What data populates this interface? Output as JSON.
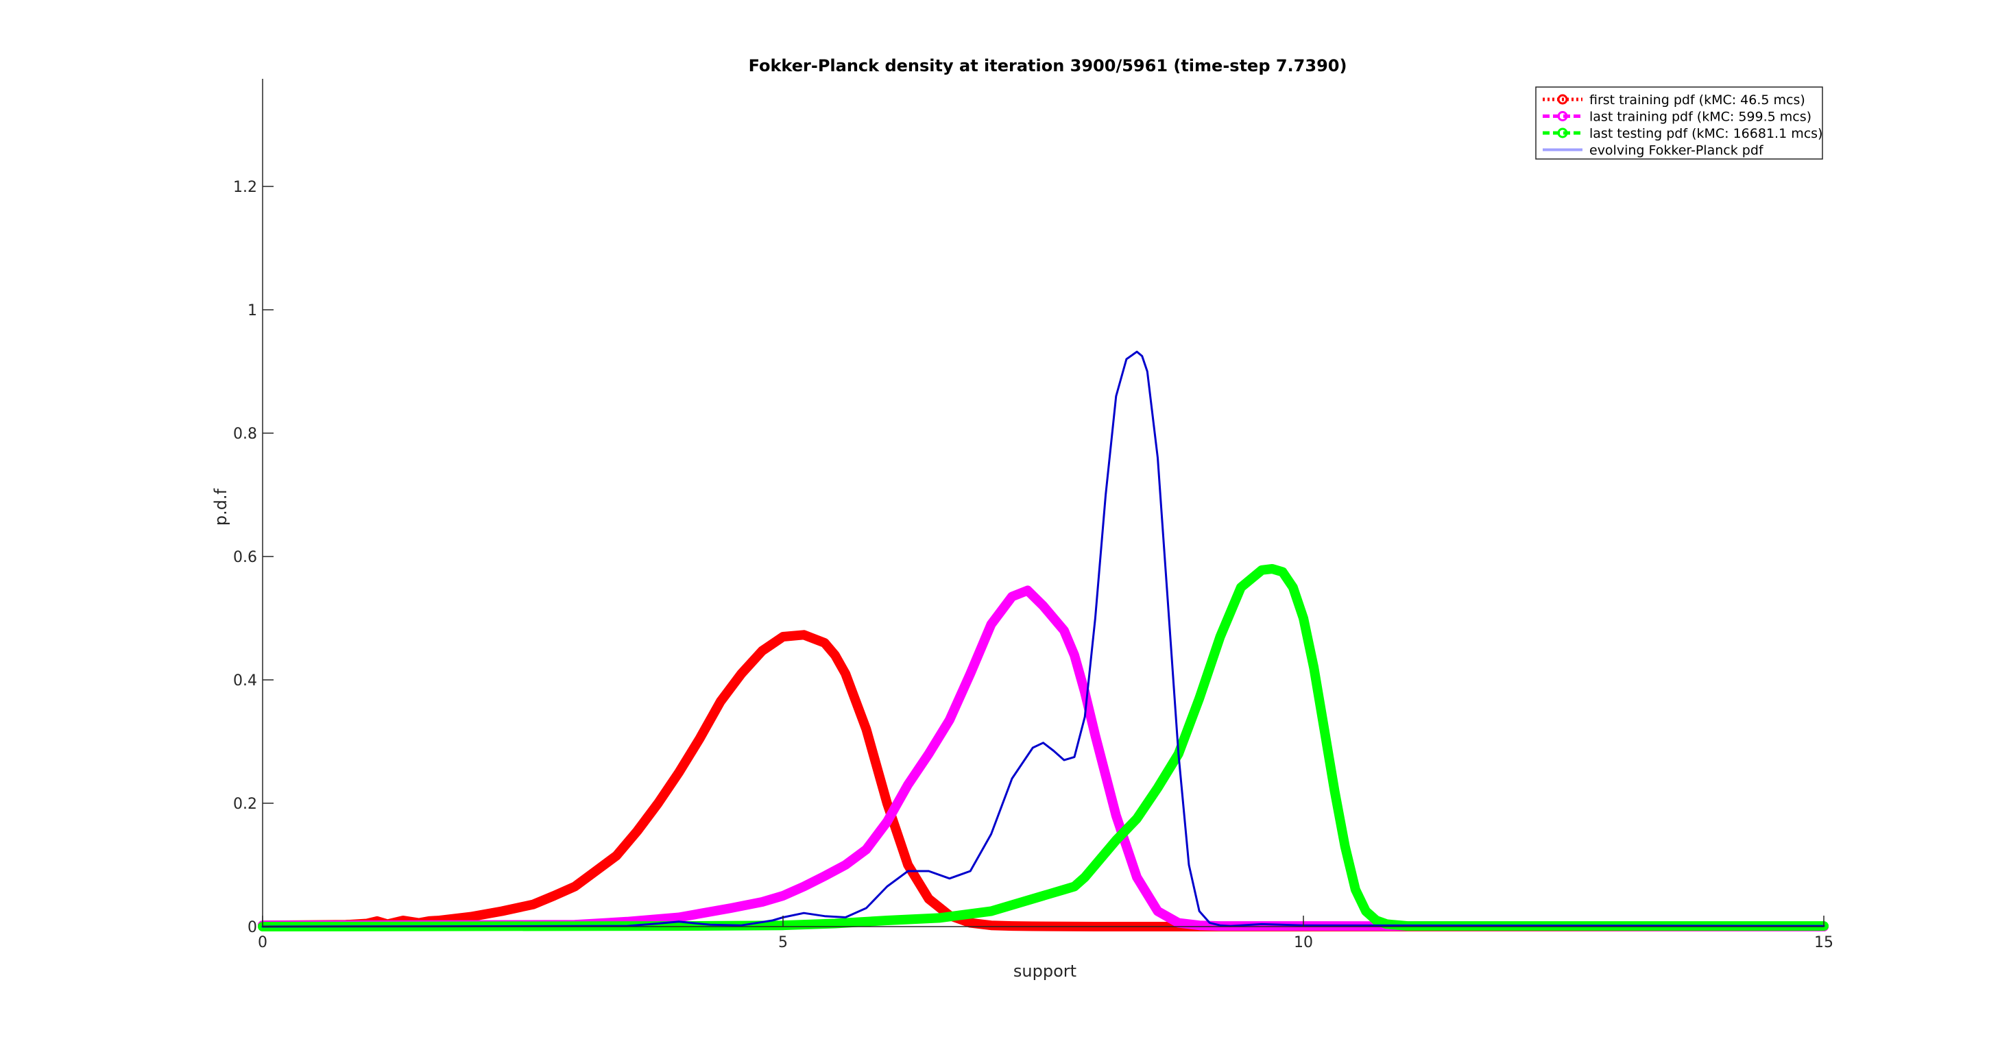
{
  "chart_data": {
    "type": "line",
    "title": "Fokker-Planck density at iteration 3900/5961 (time-step 7.7390)",
    "xlabel": "support",
    "ylabel": "p.d.f",
    "xlim": [
      0,
      15
    ],
    "ylim": [
      0,
      1.38
    ],
    "xticks": [
      0,
      5,
      10,
      15
    ],
    "xtick_labels": [
      "0",
      "5",
      "10",
      "15"
    ],
    "yticks": [
      0,
      0.2,
      0.4,
      0.6,
      0.8,
      1,
      1.2
    ],
    "ytick_labels": [
      "0",
      "0.2",
      "0.4",
      "0.6",
      "0.8",
      "1",
      "1.2"
    ],
    "grid": false,
    "legend_position": "top-right",
    "colors": {
      "first": "#ff0000",
      "last_training": "#ff00ff",
      "last_testing": "#00ff00",
      "evolving": "#0000cc",
      "evolving_legend": "#a0a0ff",
      "axis": "#262626"
    },
    "series": [
      {
        "name": "first training pdf (kMC: 46.5 mcs)",
        "style": "dotted-circle",
        "x": [
          0,
          0.8,
          1.0,
          1.1,
          1.2,
          1.35,
          1.5,
          1.6,
          1.7,
          2.0,
          2.3,
          2.6,
          2.8,
          3.0,
          3.2,
          3.4,
          3.6,
          3.8,
          4.0,
          4.2,
          4.4,
          4.6,
          4.8,
          5.0,
          5.2,
          5.4,
          5.5,
          5.6,
          5.8,
          6.0,
          6.2,
          6.4,
          6.6,
          6.8,
          7.0,
          7.2,
          7.4,
          8.0,
          9.0,
          10.0,
          15.0
        ],
        "y": [
          0.002,
          0.003,
          0.005,
          0.009,
          0.004,
          0.01,
          0.006,
          0.009,
          0.01,
          0.016,
          0.025,
          0.036,
          0.05,
          0.065,
          0.09,
          0.115,
          0.155,
          0.2,
          0.25,
          0.305,
          0.365,
          0.41,
          0.447,
          0.47,
          0.473,
          0.46,
          0.44,
          0.41,
          0.32,
          0.2,
          0.1,
          0.045,
          0.018,
          0.006,
          0.002,
          0.001,
          0.0005,
          0,
          0,
          0,
          0
        ]
      },
      {
        "name": "last training pdf (kMC: 599.5 mcs)",
        "style": "dashed-circle",
        "x": [
          0,
          3.0,
          3.5,
          4.0,
          4.5,
          4.8,
          5.0,
          5.2,
          5.4,
          5.6,
          5.8,
          6.0,
          6.2,
          6.4,
          6.6,
          6.8,
          7.0,
          7.2,
          7.35,
          7.5,
          7.6,
          7.7,
          7.8,
          7.9,
          8.0,
          8.2,
          8.4,
          8.6,
          8.8,
          9.0,
          9.2,
          9.5,
          10.0,
          15.0
        ],
        "y": [
          0.002,
          0.003,
          0.008,
          0.015,
          0.03,
          0.04,
          0.05,
          0.065,
          0.082,
          0.1,
          0.125,
          0.17,
          0.23,
          0.28,
          0.335,
          0.41,
          0.49,
          0.535,
          0.545,
          0.52,
          0.5,
          0.48,
          0.44,
          0.38,
          0.31,
          0.18,
          0.08,
          0.025,
          0.006,
          0.002,
          0.001,
          0.001,
          0.001,
          0
        ]
      },
      {
        "name": "last testing pdf (kMC: 16681.1 mcs)",
        "style": "dashed-circle",
        "x": [
          0,
          4.0,
          5.0,
          5.5,
          6.0,
          6.5,
          7.0,
          7.3,
          7.5,
          7.7,
          7.8,
          7.9,
          8.0,
          8.2,
          8.4,
          8.6,
          8.8,
          9.0,
          9.2,
          9.4,
          9.6,
          9.7,
          9.8,
          9.9,
          10.0,
          10.1,
          10.2,
          10.3,
          10.4,
          10.5,
          10.6,
          10.7,
          10.8,
          11.0,
          11.5,
          15.0
        ],
        "y": [
          0,
          0.001,
          0.002,
          0.005,
          0.01,
          0.014,
          0.025,
          0.04,
          0.05,
          0.06,
          0.065,
          0.08,
          0.1,
          0.14,
          0.175,
          0.225,
          0.28,
          0.37,
          0.47,
          0.55,
          0.578,
          0.58,
          0.575,
          0.55,
          0.5,
          0.42,
          0.32,
          0.22,
          0.13,
          0.06,
          0.025,
          0.01,
          0.004,
          0.001,
          0.001,
          0.001
        ]
      },
      {
        "name": "evolving Fokker-Planck pdf",
        "style": "solid",
        "x": [
          0,
          3.5,
          3.8,
          4.0,
          4.3,
          4.6,
          4.9,
          5.0,
          5.2,
          5.4,
          5.6,
          5.8,
          6.0,
          6.2,
          6.4,
          6.6,
          6.8,
          7.0,
          7.2,
          7.4,
          7.5,
          7.6,
          7.7,
          7.8,
          7.9,
          8.0,
          8.1,
          8.2,
          8.3,
          8.4,
          8.45,
          8.5,
          8.6,
          8.7,
          8.8,
          8.9,
          9.0,
          9.1,
          9.2,
          9.3,
          9.6,
          10.0,
          15.0
        ],
        "y": [
          0,
          0.001,
          0.005,
          0.008,
          0.003,
          0.002,
          0.01,
          0.015,
          0.022,
          0.017,
          0.015,
          0.03,
          0.065,
          0.09,
          0.09,
          0.078,
          0.09,
          0.15,
          0.24,
          0.29,
          0.298,
          0.285,
          0.27,
          0.275,
          0.34,
          0.5,
          0.7,
          0.86,
          0.92,
          0.932,
          0.925,
          0.9,
          0.76,
          0.52,
          0.28,
          0.1,
          0.025,
          0.006,
          0.002,
          0.001,
          0.004,
          0.002,
          0.001
        ]
      }
    ]
  }
}
